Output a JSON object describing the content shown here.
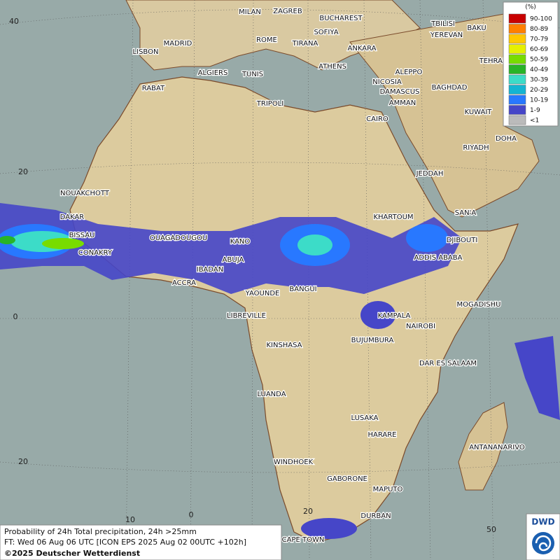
{
  "legend": {
    "title": "(%)",
    "items": [
      {
        "label": "90-100",
        "color": "#c80000"
      },
      {
        "label": "80-89",
        "color": "#ff7f00"
      },
      {
        "label": "70-79",
        "color": "#ffc800"
      },
      {
        "label": "60-69",
        "color": "#e6f000"
      },
      {
        "label": "50-59",
        "color": "#78dc00"
      },
      {
        "label": "40-49",
        "color": "#28b428"
      },
      {
        "label": "30-39",
        "color": "#3cdcc8"
      },
      {
        "label": "20-29",
        "color": "#14b4d2"
      },
      {
        "label": "10-19",
        "color": "#2878ff"
      },
      {
        "label": "1-9",
        "color": "#4646c8"
      },
      {
        "label": "<1",
        "color": "#bbbbbb"
      }
    ]
  },
  "grid_labels": [
    "40",
    "20",
    "0",
    "20",
    "10",
    "0",
    "20",
    "50"
  ],
  "cities": [
    "MILAN",
    "ZAGREB",
    "BUCHAREST",
    "TBILISI",
    "BAKU",
    "MADRID",
    "ROME",
    "SOFIYA",
    "YEREVAN",
    "LISBON",
    "TIRANA",
    "ANKARA",
    "TEHRAN",
    "ALGIERS",
    "TUNIS",
    "ATHENS",
    "ALEPPO",
    "RABAT",
    "NICOSIA",
    "BAGHDAD",
    "DAMASCUS",
    "TRIPOLI",
    "AMMAN",
    "KUWAIT",
    "CAIRO",
    "DOHA",
    "RIYADH",
    "JEDDAH",
    "NOUAKCHOTT",
    "SAN'A",
    "KHARTOUM",
    "DAKAR",
    "BISSAU",
    "OUAGADOUGOU",
    "KANO",
    "DJIBOUTI",
    "CONAKRY",
    "ABUJA",
    "ADDIS ABABA",
    "IBADAN",
    "ACCRA",
    "YAOUNDE",
    "BANGUI",
    "MOGADISHU",
    "LIBREVILLE",
    "KAMPALA",
    "NAIROBI",
    "BUJUMBURA",
    "KINSHASA",
    "DAR ES SALAAM",
    "LUANDA",
    "LUSAKA",
    "HARARE",
    "ANTANANARIVO",
    "WINDHOEK",
    "GABORONE",
    "MAPUTO",
    "DURBAN",
    "CAPE TOWN"
  ],
  "footer": {
    "line1": "Probability of 24h Total precipitation, 24h >25mm",
    "line2": "FT: Wed 06 Aug 06 UTC [ICON EPS 2025 Aug 02 00UTC +102h]",
    "line3": "©2025 Deutscher Wetterdienst"
  },
  "logo": "DWD"
}
